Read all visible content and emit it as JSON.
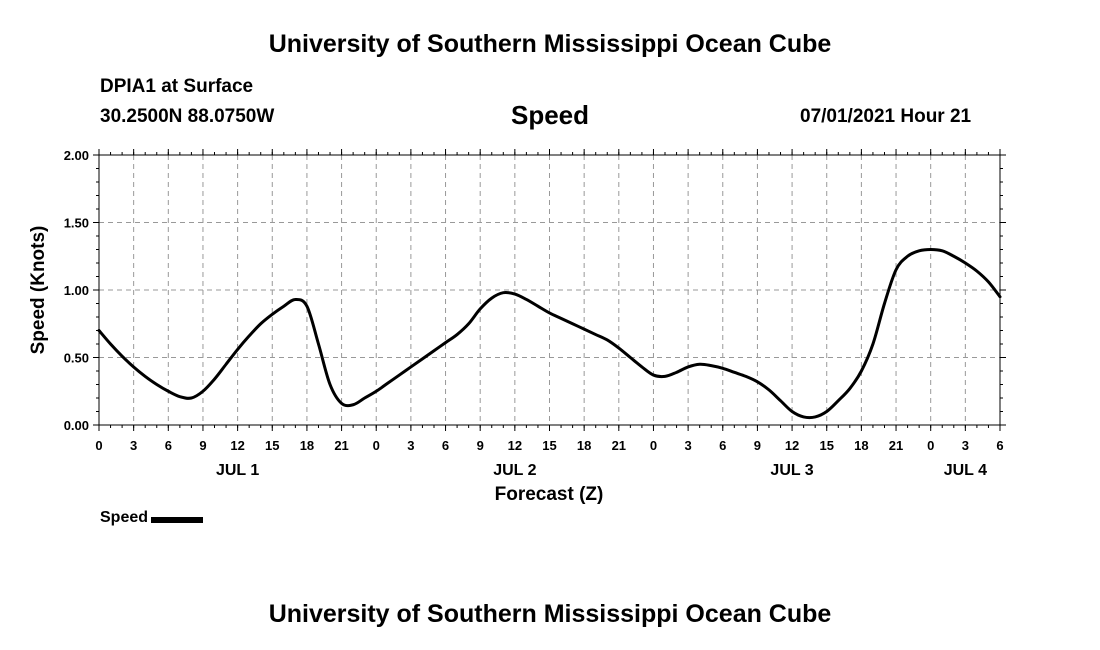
{
  "header": {
    "title": "University of Southern Mississippi Ocean Cube",
    "station": "DPIA1 at Surface",
    "coords": "30.2500N  88.0750W",
    "chart_title": "Speed",
    "datetime": "07/01/2021 Hour 21"
  },
  "footer": {
    "title": "University of Southern Mississippi Ocean Cube"
  },
  "legend": {
    "label": "Speed"
  },
  "colors": {
    "line": "#000000",
    "grid": "#999999"
  },
  "chart_data": {
    "type": "line",
    "title": "Speed",
    "xlabel": "Forecast (Z)",
    "ylabel": "Speed (Knots)",
    "ylim": [
      0,
      2
    ],
    "xlim_hours": [
      0,
      78
    ],
    "y_ticks": [
      "0.00",
      "0.50",
      "1.00",
      "1.50",
      "2.00"
    ],
    "y_tick_values": [
      0,
      0.5,
      1.0,
      1.5,
      2.0
    ],
    "x_tick_labels": [
      "0",
      "3",
      "6",
      "9",
      "12",
      "15",
      "18",
      "21",
      "0",
      "3",
      "6",
      "9",
      "12",
      "15",
      "18",
      "21",
      "0",
      "3",
      "6",
      "9",
      "12",
      "15",
      "18",
      "21",
      "0",
      "3",
      "6"
    ],
    "day_labels": [
      {
        "label": "JUL 1",
        "hour": 12
      },
      {
        "label": "JUL 2",
        "hour": 36
      },
      {
        "label": "JUL 3",
        "hour": 60
      },
      {
        "label": "JUL 4",
        "hour": 75
      }
    ],
    "grid": true,
    "legend_position": "bottom-left",
    "series": [
      {
        "name": "Speed",
        "hours": [
          0,
          1,
          2,
          3,
          4,
          5,
          6,
          7,
          8,
          9,
          10,
          11,
          12,
          13,
          14,
          15,
          16,
          17,
          18,
          19,
          20,
          21,
          22,
          23,
          24,
          25,
          26,
          27,
          28,
          29,
          30,
          31,
          32,
          33,
          34,
          35,
          36,
          37,
          38,
          39,
          40,
          41,
          42,
          43,
          44,
          45,
          46,
          47,
          48,
          49,
          50,
          51,
          52,
          53,
          54,
          55,
          56,
          57,
          58,
          59,
          60,
          61,
          62,
          63,
          64,
          65,
          66,
          67,
          68,
          69,
          70,
          71,
          72,
          73,
          74,
          75,
          76,
          77,
          78
        ],
        "values": [
          0.7,
          0.6,
          0.51,
          0.43,
          0.36,
          0.3,
          0.25,
          0.21,
          0.2,
          0.25,
          0.34,
          0.45,
          0.56,
          0.66,
          0.75,
          0.82,
          0.88,
          0.93,
          0.88,
          0.6,
          0.3,
          0.16,
          0.15,
          0.2,
          0.25,
          0.31,
          0.37,
          0.43,
          0.49,
          0.55,
          0.61,
          0.67,
          0.75,
          0.86,
          0.94,
          0.98,
          0.97,
          0.93,
          0.88,
          0.83,
          0.79,
          0.75,
          0.71,
          0.67,
          0.63,
          0.57,
          0.5,
          0.43,
          0.37,
          0.36,
          0.39,
          0.43,
          0.45,
          0.44,
          0.42,
          0.39,
          0.36,
          0.32,
          0.26,
          0.18,
          0.1,
          0.06,
          0.06,
          0.1,
          0.18,
          0.27,
          0.4,
          0.6,
          0.9,
          1.15,
          1.25,
          1.29,
          1.3,
          1.29,
          1.25,
          1.2,
          1.14,
          1.06,
          0.95
        ]
      }
    ]
  }
}
